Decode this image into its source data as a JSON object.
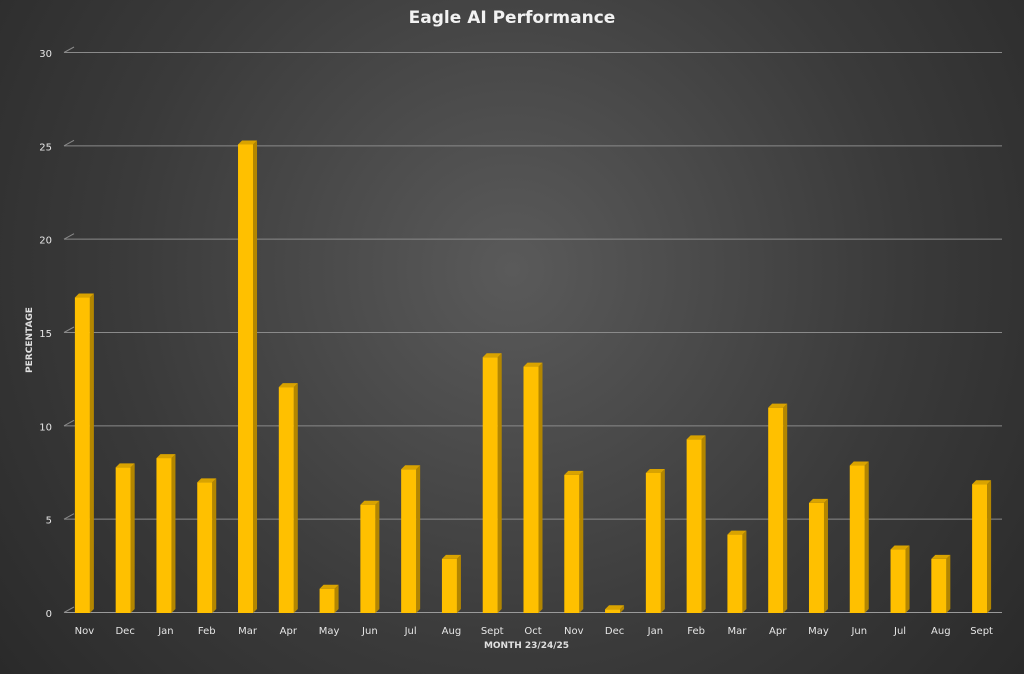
{
  "chart_data": {
    "type": "bar",
    "title": "Eagle AI Performance",
    "xlabel": "MONTH 23/24/25",
    "ylabel": "PERCENTAGE",
    "ylim": [
      0,
      30
    ],
    "yticks": [
      0,
      5,
      10,
      15,
      20,
      25,
      30
    ],
    "grid": true,
    "bar_color": "#ffc000",
    "bar_side_color": "#b38600",
    "bar_top_color": "#d9a300",
    "categories": [
      "Nov",
      "Dec",
      "Jan",
      "Feb",
      "Mar",
      "Apr",
      "May",
      "Jun",
      "Jul",
      "Aug",
      "Sept",
      "Oct",
      "Nov",
      "Dec",
      "Jan",
      "Feb",
      "Mar",
      "Apr",
      "May",
      "Jun",
      "Jul",
      "Aug",
      "Sept"
    ],
    "values": [
      16.9,
      7.8,
      8.3,
      7.0,
      25.1,
      12.1,
      1.3,
      5.8,
      7.7,
      2.9,
      13.7,
      13.2,
      7.4,
      0.2,
      7.5,
      9.3,
      4.2,
      11.0,
      5.9,
      7.9,
      3.4,
      2.9,
      6.9
    ]
  }
}
